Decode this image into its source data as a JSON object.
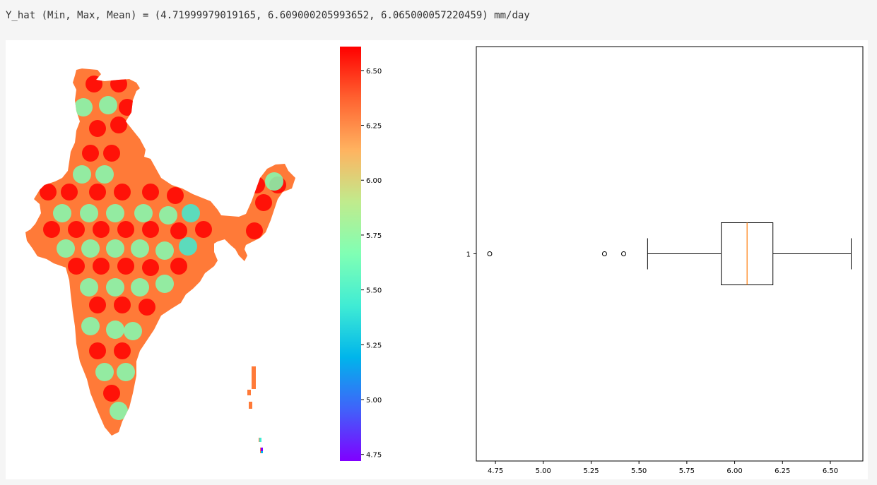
{
  "cell": {
    "stdout_text": "Y_hat (Min, Max, Mean) = (4.71999979019165, 6.609000205993652, 6.065000057220459) mm/day"
  },
  "colors": {
    "output_bg": "#ffffff",
    "page_bg": "#f5f5f5",
    "median_line": "#ff7f0e",
    "colormap_stops": [
      "#8000ff",
      "#4062fa",
      "#00b5eb",
      "#40ecd4",
      "#80ffb4",
      "#c0eb8d",
      "#ffb360",
      "#ff6230",
      "#ff0000"
    ]
  },
  "chart_data": [
    {
      "type": "heatmap",
      "description_kind": "spatial map of India",
      "colormap": "rainbow",
      "colorbar": {
        "vmin": 4.72,
        "vmax": 6.609,
        "ticks": [
          4.75,
          5.0,
          5.25,
          5.5,
          5.75,
          6.0,
          6.25,
          6.5
        ],
        "tick_labels": [
          "4.75",
          "5.00",
          "5.25",
          "5.50",
          "5.75",
          "6.00",
          "6.25",
          "6.50"
        ]
      },
      "axes_visible": false
    },
    {
      "type": "boxplot",
      "orientation": "horizontal",
      "categories": [
        "1"
      ],
      "stats": {
        "whisker_low": 5.545,
        "q1": 5.93,
        "median": 6.065,
        "q3": 6.2,
        "whisker_high": 6.609
      },
      "outliers": [
        4.72,
        5.32,
        5.42
      ],
      "xlim": [
        4.65,
        6.67
      ],
      "xticks": [
        4.75,
        5.0,
        5.25,
        5.5,
        5.75,
        6.0,
        6.25,
        6.5
      ],
      "xtick_labels": [
        "4.75",
        "5.00",
        "5.25",
        "5.50",
        "5.75",
        "6.00",
        "6.25",
        "6.50"
      ],
      "ytick_labels": [
        "1"
      ]
    }
  ]
}
